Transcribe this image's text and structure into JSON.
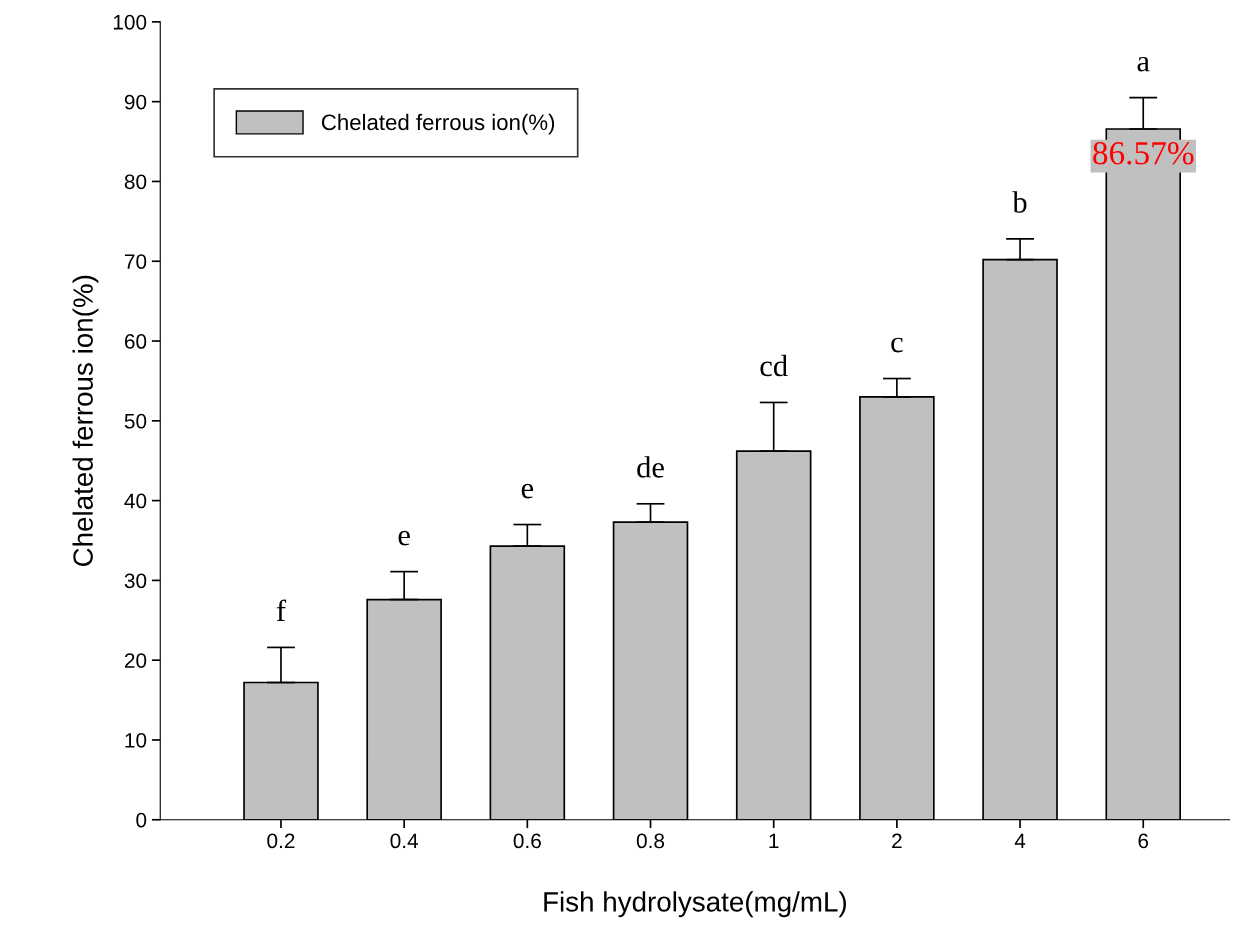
{
  "chart_data": {
    "type": "bar",
    "xlabel": "Fish hydrolysate(mg/mL)",
    "ylabel": "Chelated ferrous ion(%)",
    "categories": [
      "0.2",
      "0.4",
      "0.6",
      "0.8",
      "1",
      "2",
      "4",
      "6"
    ],
    "series": [
      {
        "name": "Chelated ferrous ion(%)",
        "color": "#c0c0c0",
        "values": [
          17.2,
          27.6,
          34.3,
          37.3,
          46.2,
          53.0,
          70.2,
          86.57
        ],
        "errors": [
          [
            17.2,
            21.6
          ],
          [
            27.6,
            31.1
          ],
          [
            34.3,
            37.0
          ],
          [
            37.3,
            39.6
          ],
          [
            46.2,
            52.3
          ],
          [
            53.0,
            55.3
          ],
          [
            70.2,
            72.8
          ],
          [
            86.57,
            90.5
          ]
        ],
        "value_labels": [
          null,
          null,
          null,
          null,
          null,
          null,
          null,
          "86.57%"
        ]
      }
    ],
    "ylim": [
      0,
      100
    ],
    "yticks": [
      0,
      10,
      20,
      30,
      40,
      50,
      60,
      70,
      80,
      90,
      100
    ],
    "grid": false,
    "legend": "top left",
    "annotations": [
      "f",
      "e",
      "e",
      "de",
      "cd",
      "c",
      "b",
      "a"
    ]
  }
}
